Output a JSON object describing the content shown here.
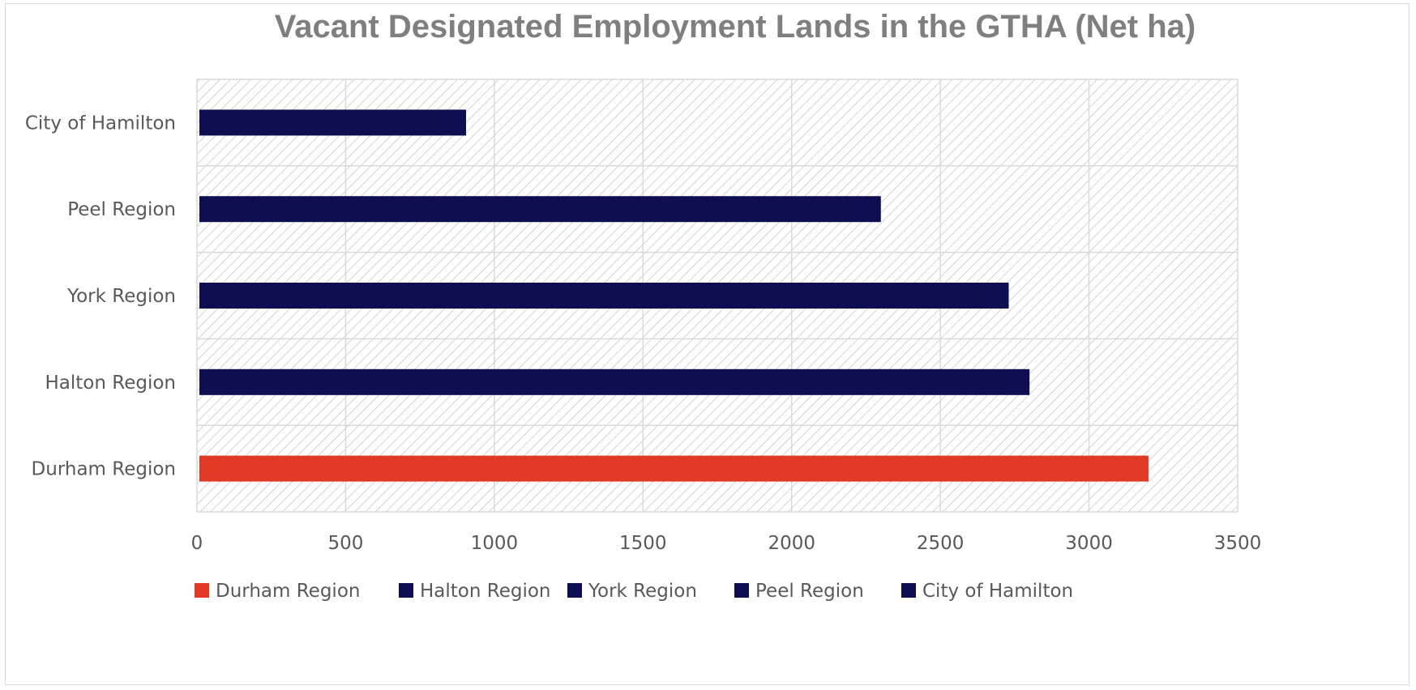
{
  "chart_data": {
    "type": "bar",
    "orientation": "horizontal",
    "title": "Vacant Designated Employment Lands in the GTHA (Net ha)",
    "xlabel": "",
    "ylabel": "",
    "categories": [
      "Durham Region",
      "Halton Region",
      "York Region",
      "Peel Region",
      "City of Hamilton"
    ],
    "values": [
      3200,
      2800,
      2730,
      2300,
      905
    ],
    "colors": [
      "#e03a27",
      "#0e0e52",
      "#0e0e52",
      "#0e0e52",
      "#0e0e52"
    ],
    "xlim": [
      0,
      3500
    ],
    "xticks": [
      0,
      500,
      1000,
      1500,
      2000,
      2500,
      3000,
      3500
    ],
    "grid": true,
    "plot_background": "diagonal hatch",
    "legend": {
      "position": "bottom",
      "entries": [
        "Durham Region",
        "Halton Region",
        "York Region",
        "Peel Region",
        "City of Hamilton"
      ]
    }
  }
}
